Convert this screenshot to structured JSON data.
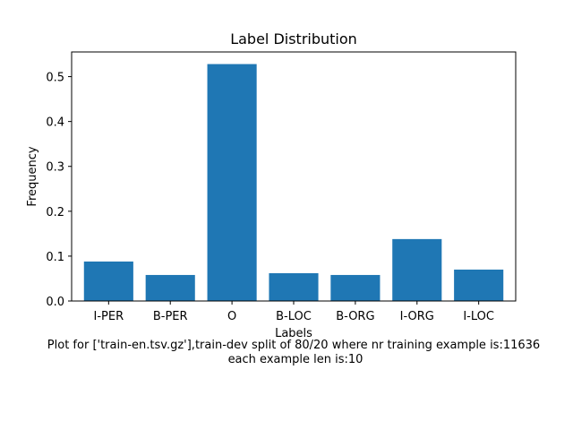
{
  "chart_data": {
    "type": "bar",
    "title": "Label Distribution",
    "xlabel": "Labels",
    "ylabel": "Frequency",
    "categories": [
      "I-PER",
      "B-PER",
      "O",
      "B-LOC",
      "B-ORG",
      "I-ORG",
      "I-LOC"
    ],
    "values": [
      0.088,
      0.058,
      0.528,
      0.062,
      0.058,
      0.138,
      0.07
    ],
    "ylim": [
      0,
      0.555
    ],
    "yticks": [
      0.0,
      0.1,
      0.2,
      0.3,
      0.4,
      0.5
    ],
    "ytick_labels": [
      "0.0",
      "0.1",
      "0.2",
      "0.3",
      "0.4",
      "0.5"
    ],
    "grid": false,
    "bar_color": "#1f77b4",
    "caption_lines": [
      "Plot for ['train-en.tsv.gz'],train-dev split of 80/20 where nr training example is:11636",
      "each example len is:10"
    ]
  }
}
